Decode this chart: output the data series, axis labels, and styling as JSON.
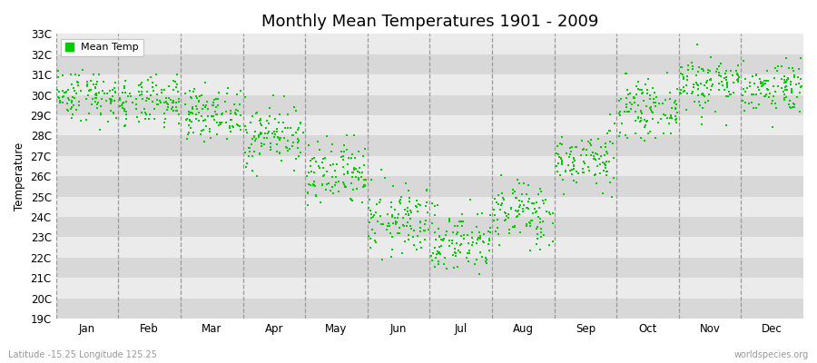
{
  "title": "Monthly Mean Temperatures 1901 - 2009",
  "ylabel": "Temperature",
  "xlabel_bottom": "Latitude -15.25 Longitude 125.25",
  "watermark": "worldspecies.org",
  "legend_label": "Mean Temp",
  "dot_color": "#00cc00",
  "background_color": "#ffffff",
  "plot_bg_color": "#ebebeb",
  "band_color1": "#ebebeb",
  "band_color2": "#d8d8d8",
  "ylim": [
    19,
    33
  ],
  "ytick_labels": [
    "19C",
    "20C",
    "21C",
    "22C",
    "23C",
    "24C",
    "25C",
    "26C",
    "27C",
    "28C",
    "29C",
    "30C",
    "31C",
    "32C",
    "33C"
  ],
  "ytick_values": [
    19,
    20,
    21,
    22,
    23,
    24,
    25,
    26,
    27,
    28,
    29,
    30,
    31,
    32,
    33
  ],
  "months": [
    "Jan",
    "Feb",
    "Mar",
    "Apr",
    "May",
    "Jun",
    "Jul",
    "Aug",
    "Sep",
    "Oct",
    "Nov",
    "Dec"
  ],
  "monthly_means": [
    30.0,
    29.6,
    29.1,
    28.0,
    26.0,
    23.8,
    22.8,
    24.2,
    26.8,
    29.3,
    30.6,
    30.4
  ],
  "monthly_stds": [
    0.65,
    0.6,
    0.6,
    0.75,
    0.85,
    0.85,
    0.8,
    0.8,
    0.7,
    0.65,
    0.7,
    0.65
  ],
  "monthly_min": [
    27.5,
    27.5,
    27.0,
    25.8,
    24.0,
    21.0,
    19.7,
    22.0,
    25.0,
    27.5,
    28.5,
    28.4
  ],
  "monthly_max": [
    31.3,
    31.0,
    30.6,
    30.3,
    28.0,
    26.5,
    25.5,
    26.5,
    30.3,
    31.5,
    32.5,
    31.8
  ],
  "n_years": 109,
  "seed": 42,
  "title_fontsize": 13,
  "axis_fontsize": 8.5,
  "legend_fontsize": 8,
  "dot_size": 3.5,
  "dot_marker": "s",
  "figsize": [
    9.0,
    4.0
  ],
  "dpi": 100
}
